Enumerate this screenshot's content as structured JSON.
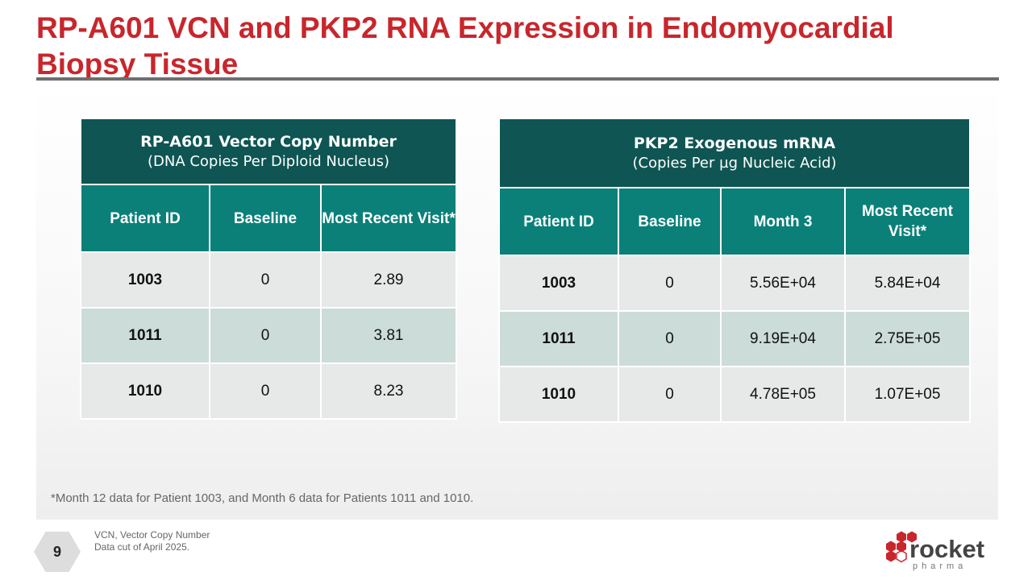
{
  "title": "RP-A601 VCN and PKP2 RNA Expression in Endomyocardial Biopsy Tissue",
  "vcn_table": {
    "title": "RP-A601 Vector Copy Number",
    "subtitle": "(DNA Copies Per Diploid Nucleus)",
    "columns": [
      "Patient ID",
      "Baseline",
      "Most Recent Visit*"
    ],
    "rows": [
      {
        "id": "1003",
        "baseline": "0",
        "recent": "2.89"
      },
      {
        "id": "1011",
        "baseline": "0",
        "recent": "3.81"
      },
      {
        "id": "1010",
        "baseline": "0",
        "recent": "8.23"
      }
    ]
  },
  "pkp2_table": {
    "title": "PKP2 Exogenous mRNA",
    "subtitle": "(Copies Per µg Nucleic Acid)",
    "columns": [
      "Patient ID",
      "Baseline",
      "Month 3",
      "Most Recent Visit*"
    ],
    "rows": [
      {
        "id": "1003",
        "baseline": "0",
        "month3": "5.56E+04",
        "recent": "5.84E+04"
      },
      {
        "id": "1011",
        "baseline": "0",
        "month3": "9.19E+04",
        "recent": "2.75E+05"
      },
      {
        "id": "1010",
        "baseline": "0",
        "month3": "4.78E+05",
        "recent": "1.07E+05"
      }
    ]
  },
  "footnote": "*Month 12 data for Patient 1003, and Month 6 data for Patients 1011 and 1010.",
  "page_number": "9",
  "notes": [
    "VCN, Vector Copy Number",
    "Data cut of April 2025."
  ],
  "logo": {
    "word": "rocket",
    "sub": "pharma"
  },
  "colors": {
    "title_red": "#c8262c",
    "header_dark": "#0e5553",
    "header_teal": "#0a8079",
    "logo_red": "#c8262c"
  }
}
